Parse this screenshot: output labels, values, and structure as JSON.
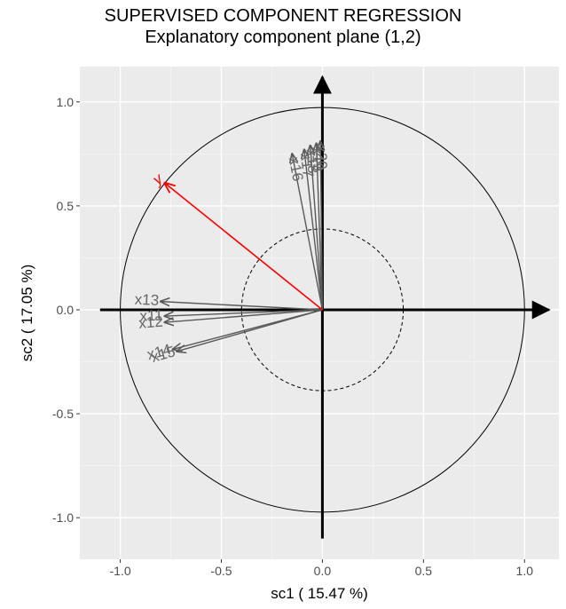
{
  "chart_data": {
    "type": "scatter",
    "title": "SUPERVISED COMPONENT REGRESSION",
    "subtitle": "Explanatory component plane (1,2)",
    "xlabel": "sc1 ( 15.47 %)",
    "ylabel": "sc2 ( 17.05 %)",
    "xlim": [
      -1.2,
      1.17
    ],
    "ylim": [
      -1.2,
      1.17
    ],
    "x_ticks": [
      "-1.0",
      "-0.5",
      "0.0",
      "0.5",
      "1.0"
    ],
    "y_ticks": [
      "-1.0",
      "-0.5",
      "0.0",
      "0.5",
      "1.0"
    ],
    "x_tick_values": [
      -1.0,
      -0.5,
      0.0,
      0.5,
      1.0
    ],
    "y_tick_values": [
      -1.0,
      -0.5,
      0.0,
      0.5,
      1.0
    ],
    "grid": true,
    "unit_circle_radius": 1.0,
    "inner_circle_radius": 0.4,
    "response": {
      "label": "y",
      "x": -0.78,
      "y": 0.61,
      "color": "#ff0000"
    },
    "variables": [
      {
        "label": "x13",
        "x": -0.8,
        "y": 0.04
      },
      {
        "label": "x11",
        "x": -0.78,
        "y": -0.03
      },
      {
        "label": "x12",
        "x": -0.78,
        "y": -0.06
      },
      {
        "label": "x14",
        "x": -0.74,
        "y": -0.19
      },
      {
        "label": "x15",
        "x": -0.72,
        "y": -0.2
      },
      {
        "label": "x16",
        "x": -0.15,
        "y": 0.75
      },
      {
        "label": "x17",
        "x": -0.09,
        "y": 0.77
      },
      {
        "label": "x18",
        "x": -0.06,
        "y": 0.79
      },
      {
        "label": "x19",
        "x": -0.03,
        "y": 0.8
      },
      {
        "label": "x20",
        "x": -0.01,
        "y": 0.81
      }
    ]
  }
}
